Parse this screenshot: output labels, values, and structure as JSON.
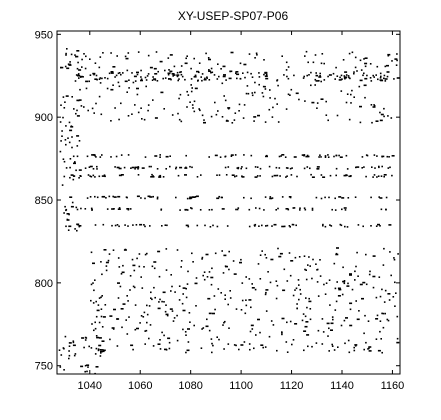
{
  "chart_data": {
    "type": "scatter",
    "title": "XY-USEP-SP07-P06",
    "xlabel": "",
    "ylabel": "",
    "xlim": [
      1027,
      1163
    ],
    "ylim": [
      745,
      952
    ],
    "xticks": [
      1040,
      1060,
      1080,
      1100,
      1120,
      1140,
      1160
    ],
    "yticks": [
      750,
      800,
      850,
      900,
      950
    ],
    "grid": false,
    "marker": "small black dots",
    "colors": {
      "points": "#000000",
      "axes": "#000000",
      "background": "#ffffff"
    },
    "point_clusters": [
      {
        "region": "upper band",
        "x": [
          1034,
          1162
        ],
        "y": [
          897,
          940
        ]
      },
      {
        "region": "left column",
        "x": [
          1028,
          1036
        ],
        "y": [
          830,
          945
        ]
      },
      {
        "region": "horizontal rows",
        "x": [
          1030,
          1160
        ],
        "y": [
          833,
          880
        ]
      },
      {
        "region": "lower band",
        "x": [
          1040,
          1162
        ],
        "y": [
          758,
          822
        ]
      },
      {
        "region": "lower-left corner",
        "x": [
          1027,
          1045
        ],
        "y": [
          745,
          770
        ]
      }
    ]
  }
}
